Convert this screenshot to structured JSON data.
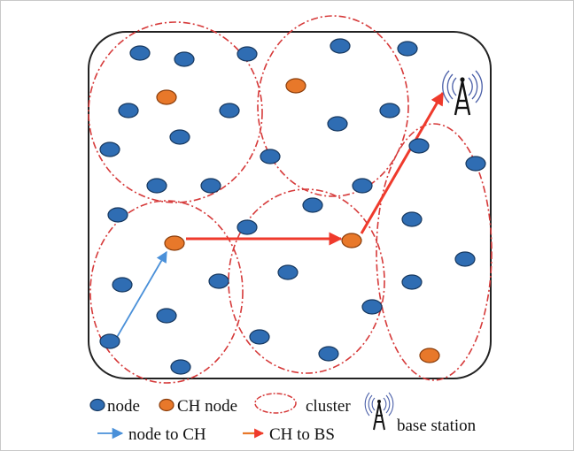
{
  "legend": {
    "node": "node",
    "ch_node": "CH node",
    "cluster": "cluster",
    "base_station": "base station",
    "node_to_ch": "node to CH",
    "ch_to_bs": "CH to BS"
  },
  "colors": {
    "node": "#2f6db3",
    "node_edge": "#17385f",
    "ch_node": "#e8782a",
    "ch_edge": "#8a3d0b",
    "cluster": "#d63a3a",
    "ch_to_bs_arrow": "#ef3a2c",
    "node_to_ch_arrow": "#4a90d9",
    "field_border": "#222222",
    "base_station": "#111111",
    "signal_waves": "#4a5fa8"
  },
  "icons": {
    "base_station": "radio-tower-icon"
  }
}
